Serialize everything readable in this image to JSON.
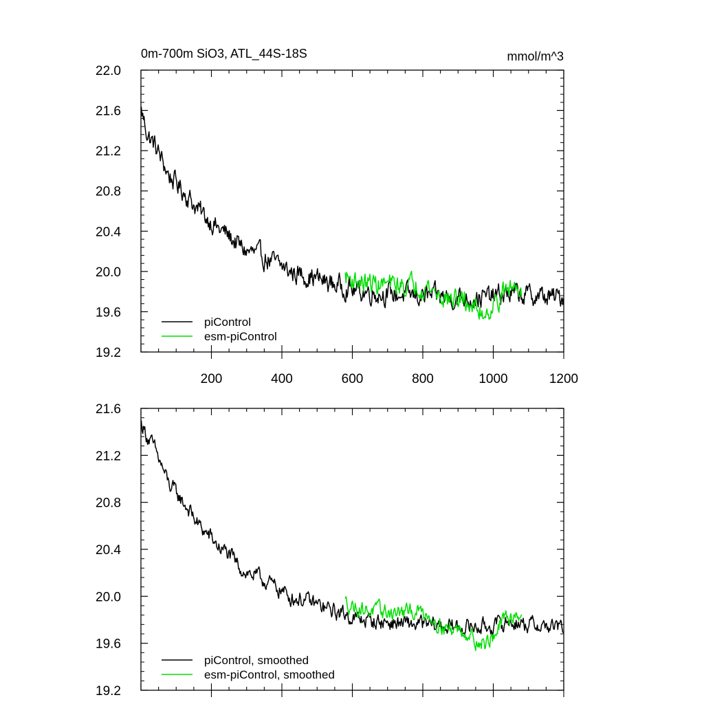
{
  "figure": {
    "title_left": "0m-700m SiO3, ATL_44S-18S",
    "title_right": "mmol/m^3"
  },
  "chart_data": [
    {
      "type": "line",
      "xlim": [
        0,
        1200
      ],
      "ylim": [
        19.2,
        22.0
      ],
      "yticks": [
        "19.2",
        "19.6",
        "20.0",
        "20.4",
        "20.8",
        "21.2",
        "21.6",
        "22.0"
      ],
      "xticks": [
        "200",
        "400",
        "600",
        "800",
        "1000",
        "1200"
      ],
      "legend_placement": "bottom-left",
      "series": [
        {
          "name": "piControl",
          "color": "#000000",
          "key_x": [
            1,
            20,
            40,
            60,
            80,
            100,
            120,
            140,
            160,
            180,
            200,
            220,
            240,
            260,
            280,
            300,
            320,
            340,
            360,
            380,
            400,
            420,
            440,
            460,
            480,
            500,
            520,
            540,
            560,
            580,
            600,
            620,
            640,
            660,
            680,
            700,
            720,
            740,
            760,
            780,
            800,
            820,
            840,
            860,
            880,
            900,
            920,
            940,
            960,
            980,
            1000,
            1020,
            1040,
            1060,
            1080,
            1100,
            1120,
            1140,
            1160,
            1180,
            1200
          ],
          "key_y": [
            21.6,
            21.35,
            21.25,
            21.1,
            20.95,
            20.88,
            20.8,
            20.72,
            20.62,
            20.55,
            20.5,
            20.42,
            20.38,
            20.32,
            20.25,
            20.2,
            20.18,
            20.15,
            20.12,
            20.08,
            20.05,
            20.0,
            19.98,
            19.97,
            19.95,
            19.93,
            19.9,
            19.88,
            19.86,
            19.85,
            19.82,
            19.8,
            19.8,
            19.79,
            19.78,
            19.78,
            19.77,
            19.77,
            19.76,
            19.76,
            19.76,
            19.75,
            19.75,
            19.75,
            19.74,
            19.74,
            19.74,
            19.74,
            19.74,
            19.74,
            19.75,
            19.76,
            19.78,
            19.78,
            19.77,
            19.76,
            19.76,
            19.75,
            19.74,
            19.74,
            19.76
          ],
          "noise": 0.085
        },
        {
          "name": "esm-piControl",
          "color": "#00dd00",
          "key_x": [
            580,
            600,
            620,
            640,
            660,
            680,
            700,
            720,
            740,
            760,
            780,
            800,
            820,
            840,
            860,
            880,
            900,
            920,
            940,
            960,
            980,
            1000,
            1020,
            1040,
            1060,
            1080
          ],
          "key_y": [
            19.95,
            19.92,
            19.9,
            19.88,
            19.88,
            19.87,
            19.87,
            19.86,
            19.86,
            19.86,
            19.88,
            19.86,
            19.84,
            19.78,
            19.74,
            19.72,
            19.72,
            19.7,
            19.66,
            19.6,
            19.6,
            19.66,
            19.75,
            19.82,
            19.85,
            19.85
          ],
          "noise": 0.085
        }
      ]
    },
    {
      "type": "line",
      "xlim": [
        0,
        1200
      ],
      "ylim": [
        19.2,
        21.6
      ],
      "yticks": [
        "19.2",
        "19.6",
        "20.0",
        "20.4",
        "20.8",
        "21.2",
        "21.6"
      ],
      "xticks": [],
      "legend_placement": "bottom-left",
      "series": [
        {
          "name": "piControl, smoothed",
          "color": "#000000",
          "key_x": [
            1,
            20,
            40,
            60,
            80,
            100,
            120,
            140,
            160,
            180,
            200,
            220,
            240,
            260,
            280,
            300,
            320,
            340,
            360,
            380,
            400,
            420,
            440,
            460,
            480,
            500,
            520,
            540,
            560,
            580,
            600,
            620,
            640,
            660,
            680,
            700,
            720,
            740,
            760,
            780,
            800,
            820,
            840,
            860,
            880,
            900,
            920,
            940,
            960,
            980,
            1000,
            1020,
            1040,
            1060,
            1080,
            1100,
            1120,
            1140,
            1160,
            1180,
            1200
          ],
          "key_y": [
            21.47,
            21.35,
            21.25,
            21.1,
            20.95,
            20.88,
            20.8,
            20.72,
            20.62,
            20.55,
            20.5,
            20.42,
            20.38,
            20.32,
            20.25,
            20.2,
            20.18,
            20.15,
            20.12,
            20.08,
            20.05,
            20.0,
            19.98,
            19.97,
            19.95,
            19.93,
            19.9,
            19.88,
            19.86,
            19.85,
            19.82,
            19.8,
            19.8,
            19.79,
            19.78,
            19.78,
            19.77,
            19.77,
            19.76,
            19.76,
            19.76,
            19.75,
            19.75,
            19.75,
            19.74,
            19.74,
            19.74,
            19.74,
            19.74,
            19.74,
            19.75,
            19.76,
            19.78,
            19.78,
            19.77,
            19.76,
            19.76,
            19.75,
            19.74,
            19.74,
            19.73
          ],
          "noise": 0.055
        },
        {
          "name": "esm-piControl, smoothed",
          "color": "#00dd00",
          "key_x": [
            580,
            600,
            620,
            640,
            660,
            680,
            700,
            720,
            740,
            760,
            780,
            800,
            820,
            840,
            860,
            880,
            900,
            920,
            940,
            960,
            980,
            1000,
            1020,
            1040,
            1060,
            1080
          ],
          "key_y": [
            19.95,
            19.92,
            19.9,
            19.88,
            19.88,
            19.87,
            19.87,
            19.86,
            19.86,
            19.86,
            19.88,
            19.86,
            19.84,
            19.78,
            19.74,
            19.72,
            19.72,
            19.7,
            19.66,
            19.6,
            19.6,
            19.66,
            19.75,
            19.82,
            19.85,
            19.85
          ],
          "noise": 0.055
        }
      ]
    }
  ]
}
